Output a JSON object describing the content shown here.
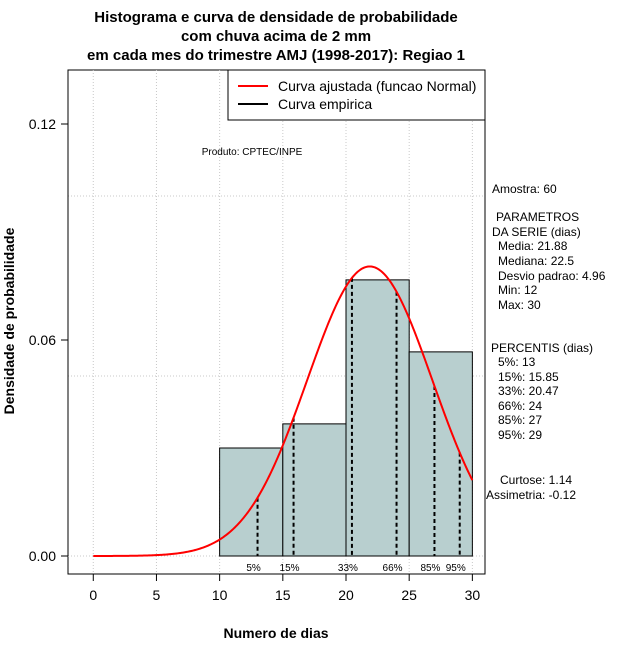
{
  "chart_data": {
    "type": "bar",
    "title_lines": [
      "Histograma e curva de densidade de probabilidade",
      "com chuva acima de 2 mm",
      "em cada mes do trimestre AMJ (1998-2017): Regiao 1"
    ],
    "xlabel": "Numero de dias",
    "ylabel": "Densidade de probabilidade",
    "xlim": [
      -2,
      31
    ],
    "ylim": [
      -0.005,
      0.135
    ],
    "x_ticks": [
      0,
      5,
      10,
      15,
      20,
      25,
      30
    ],
    "x_tick_labels": [
      "0",
      "5",
      "10",
      "15",
      "20",
      "25",
      "30"
    ],
    "y_ticks": [
      0.0,
      0.06,
      0.12
    ],
    "y_tick_labels": [
      "0.00",
      "0.06",
      "0.12"
    ],
    "grid_x": [
      0,
      5,
      10,
      15,
      20,
      25,
      30
    ],
    "grid_y": [
      0.0,
      0.05,
      0.1
    ],
    "bins": [
      {
        "from": 10,
        "to": 15,
        "density": 0.03
      },
      {
        "from": 15,
        "to": 20,
        "density": 0.0367
      },
      {
        "from": 20,
        "to": 25,
        "density": 0.0767
      },
      {
        "from": 25,
        "to": 30,
        "density": 0.0567
      }
    ],
    "bar_color": "#b8cfcf",
    "curve": {
      "name": "Curva ajustada (funcao Normal)",
      "distribution": "normal",
      "mean": 21.88,
      "sd": 4.96,
      "x_range": [
        0,
        30
      ],
      "color": "#ff0000"
    },
    "empirical": {
      "name": "Curva empirica",
      "color": "#000000"
    },
    "percentile_markers": [
      {
        "label": "5%",
        "x": 13
      },
      {
        "label": "15%",
        "x": 15.85
      },
      {
        "label": "33%",
        "x": 20.47
      },
      {
        "label": "66%",
        "x": 24
      },
      {
        "label": "85%",
        "x": 27
      },
      {
        "label": "95%",
        "x": 29
      }
    ],
    "legend": {
      "position": "top-right",
      "entries": [
        "Curva ajustada (funcao Normal)",
        "Curva empirica"
      ]
    },
    "product_label": "Produto: CPTEC/INPE"
  },
  "side_panel": {
    "sample": "Amostra: 60",
    "params_title_1": "PARAMETROS",
    "params_title_2": "DA SERIE (dias)",
    "media": "Media: 21.88",
    "mediana": "Mediana: 22.5",
    "desvio": "Desvio padrao: 4.96",
    "min": "Min: 12",
    "max": "Max: 30",
    "percentis_title": "PERCENTIS (dias)",
    "p5": "5%: 13",
    "p15": "15%: 15.85",
    "p33": "33%: 20.47",
    "p66": "66%: 24",
    "p85": "85%: 27",
    "p95": "95%: 29",
    "curtose": "Curtose: 1.14",
    "assimetria": "Assimetria: -0.12"
  }
}
